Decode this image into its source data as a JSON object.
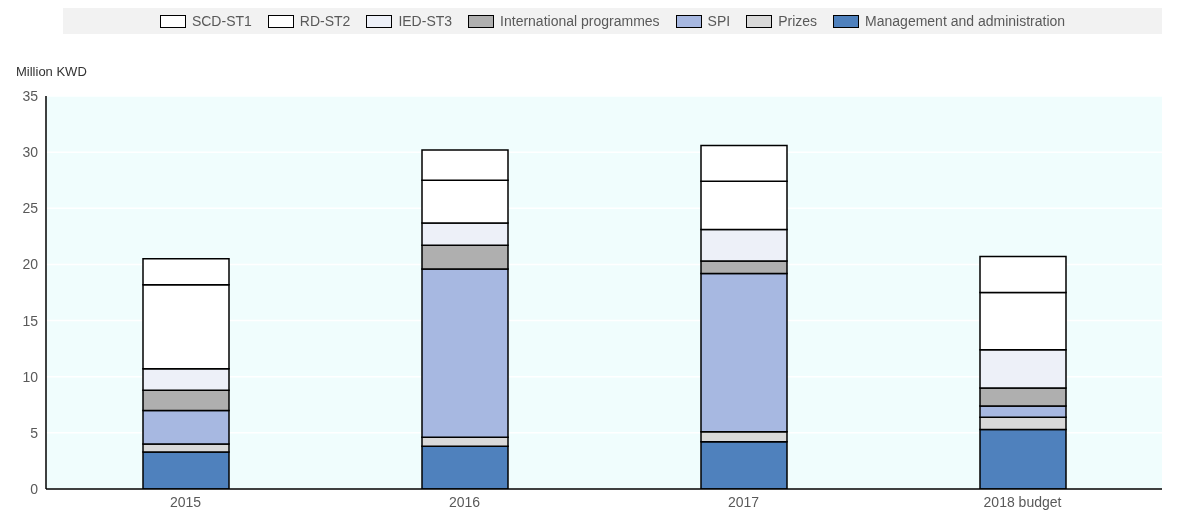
{
  "chart_data": {
    "type": "bar",
    "ylabel": "Million KWD",
    "categories": [
      "2015",
      "2016",
      "2017",
      "2018 budget"
    ],
    "stacked": true,
    "ylim": [
      0,
      35
    ],
    "yticks": [
      0,
      5,
      10,
      15,
      20,
      25,
      30,
      35
    ],
    "grid": "y",
    "legend": "top",
    "series": [
      {
        "name": "Management and administration",
        "color": "#4f81bd",
        "values": [
          3.3,
          3.8,
          4.2,
          5.3
        ]
      },
      {
        "name": "Prizes",
        "color": "#d9d9d9",
        "values": [
          0.7,
          0.8,
          0.9,
          1.1
        ]
      },
      {
        "name": "SPI",
        "color": "#a7b8e1",
        "values": [
          3.0,
          15.0,
          14.1,
          1.0
        ]
      },
      {
        "name": "International programmes",
        "color": "#afafaf",
        "values": [
          1.8,
          2.1,
          1.1,
          1.6
        ]
      },
      {
        "name": "IED-ST3",
        "color": "#edf0f8",
        "values": [
          1.9,
          2.0,
          2.8,
          3.4
        ]
      },
      {
        "name": "RD-ST2",
        "color": "#ffffff",
        "values": [
          7.5,
          3.8,
          4.3,
          5.1
        ]
      },
      {
        "name": "SCD-ST1",
        "color": "#ffffff",
        "values": [
          2.3,
          2.7,
          3.2,
          3.2
        ]
      }
    ]
  }
}
